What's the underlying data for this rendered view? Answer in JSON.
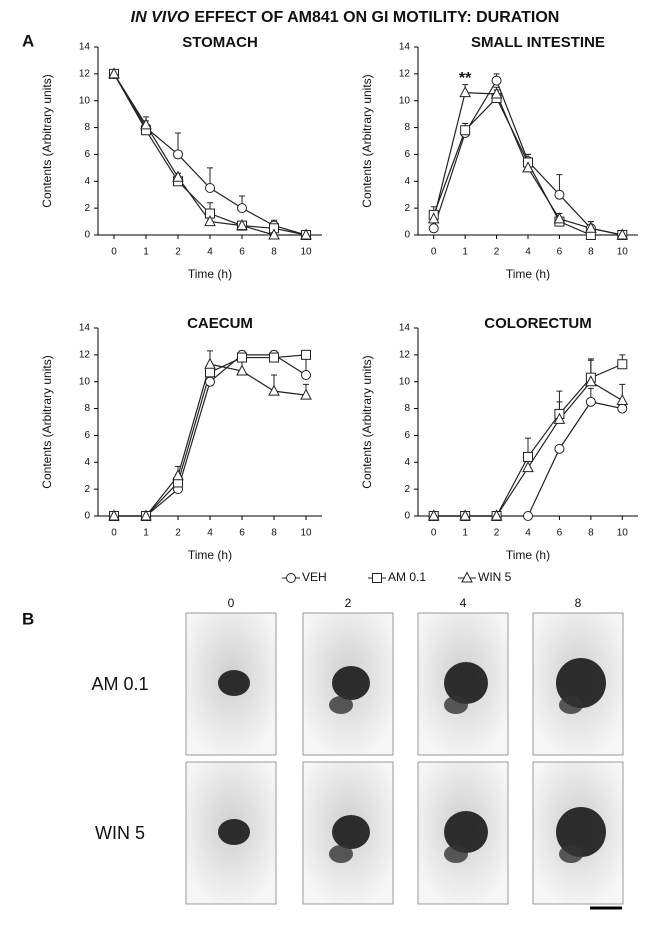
{
  "figure_title": {
    "italic": "IN VIVO",
    "rest": "EFFECT OF AM841 ON GI MOTILITY: DURATION"
  },
  "panel_a_label": "A",
  "legend": {
    "items": [
      "VEH",
      "AM 0.1",
      "WIN 5"
    ],
    "markers": [
      "circle",
      "square",
      "triangle"
    ]
  },
  "chart_data": [
    {
      "type": "line",
      "title": "STOMACH",
      "x_label": "Time (h)",
      "y_label": "Contents (Arbitrary units)",
      "categories": [
        0,
        1,
        2,
        4,
        6,
        8,
        10
      ],
      "ylim": [
        0,
        14
      ],
      "yticks": [
        0,
        2,
        4,
        6,
        8,
        10,
        12,
        14
      ],
      "series": [
        {
          "values": [
            12,
            8,
            6,
            3.5,
            2,
            0.7,
            0
          ],
          "errors": [
            0,
            0.5,
            1.6,
            1.5,
            0.9,
            0.4,
            0
          ]
        },
        {
          "values": [
            12,
            7.8,
            4,
            1.6,
            0.7,
            0.5,
            0
          ],
          "errors": [
            0,
            0.4,
            0.4,
            0.8,
            0.3,
            0.5,
            0
          ]
        },
        {
          "values": [
            12,
            8.2,
            4.3,
            1,
            0.7,
            0,
            0
          ],
          "errors": [
            0,
            0.6,
            0.3,
            0.3,
            0.2,
            0,
            0
          ]
        }
      ]
    },
    {
      "type": "line",
      "title": "SMALL INTESTINE",
      "x_label": "Time (h)",
      "y_label": "Contents (Arbitrary units)",
      "categories": [
        0,
        1,
        2,
        4,
        6,
        8,
        10
      ],
      "ylim": [
        0,
        14
      ],
      "yticks": [
        0,
        2,
        4,
        6,
        8,
        10,
        12,
        14
      ],
      "annotations": [
        {
          "text": "**",
          "x": 1
        }
      ],
      "series": [
        {
          "values": [
            0.5,
            7.6,
            11.5,
            5.5,
            3,
            0.5,
            0
          ],
          "errors": [
            0,
            0.5,
            0.5,
            0.5,
            1.5,
            0.5,
            0
          ]
        },
        {
          "values": [
            1.5,
            7.8,
            10.2,
            5.4,
            1,
            0,
            0
          ],
          "errors": [
            0.6,
            0.5,
            0.6,
            0.6,
            0.6,
            0.2,
            0
          ]
        },
        {
          "values": [
            1.2,
            10.6,
            10.5,
            5,
            1.2,
            0.5,
            0
          ],
          "errors": [
            0.4,
            0.6,
            0.5,
            0.4,
            0.4,
            0.5,
            0
          ]
        }
      ]
    },
    {
      "type": "line",
      "title": "CAECUM",
      "x_label": "Time (h)",
      "y_label": "Contents (Arbitrary units)",
      "categories": [
        0,
        1,
        2,
        4,
        6,
        8,
        10
      ],
      "ylim": [
        0,
        14
      ],
      "yticks": [
        0,
        2,
        4,
        6,
        8,
        10,
        12,
        14
      ],
      "series": [
        {
          "values": [
            0,
            0,
            2,
            10,
            12,
            12,
            10.5
          ],
          "errors": [
            0,
            0,
            0.3,
            0.8,
            0.3,
            0.3,
            1.3
          ]
        },
        {
          "values": [
            0,
            0,
            2.5,
            10.7,
            11.8,
            11.8,
            12
          ],
          "errors": [
            0,
            0,
            0.6,
            0.5,
            0.3,
            0.3,
            0.3
          ]
        },
        {
          "values": [
            0,
            0,
            3,
            11.3,
            10.8,
            9.3,
            9
          ],
          "errors": [
            0,
            0,
            0.7,
            1,
            0.7,
            1.2,
            0.8
          ]
        }
      ]
    },
    {
      "type": "line",
      "title": "COLORECTUM",
      "x_label": "Time (h)",
      "y_label": "Contents (Arbitrary units)",
      "categories": [
        0,
        1,
        2,
        4,
        6,
        8,
        10
      ],
      "ylim": [
        0,
        14
      ],
      "yticks": [
        0,
        2,
        4,
        6,
        8,
        10,
        12,
        14
      ],
      "series": [
        {
          "values": [
            0,
            0,
            0,
            0,
            5,
            8.5,
            8
          ],
          "errors": [
            0,
            0,
            0,
            0,
            0,
            1,
            0.3
          ]
        },
        {
          "values": [
            0,
            0,
            0,
            4.4,
            7.6,
            10.3,
            11.3
          ],
          "errors": [
            0,
            0,
            0,
            1.4,
            1.7,
            1.4,
            0.7
          ]
        },
        {
          "values": [
            0,
            0,
            0,
            3.6,
            7.2,
            10,
            8.6
          ],
          "errors": [
            0,
            0,
            0,
            0.6,
            1.3,
            1.6,
            1.2
          ]
        }
      ]
    }
  ],
  "panel_b": {
    "label": "B",
    "columns": [
      "0",
      "2",
      "4",
      "8"
    ],
    "rows": [
      "AM 0.1",
      "WIN 5"
    ]
  }
}
